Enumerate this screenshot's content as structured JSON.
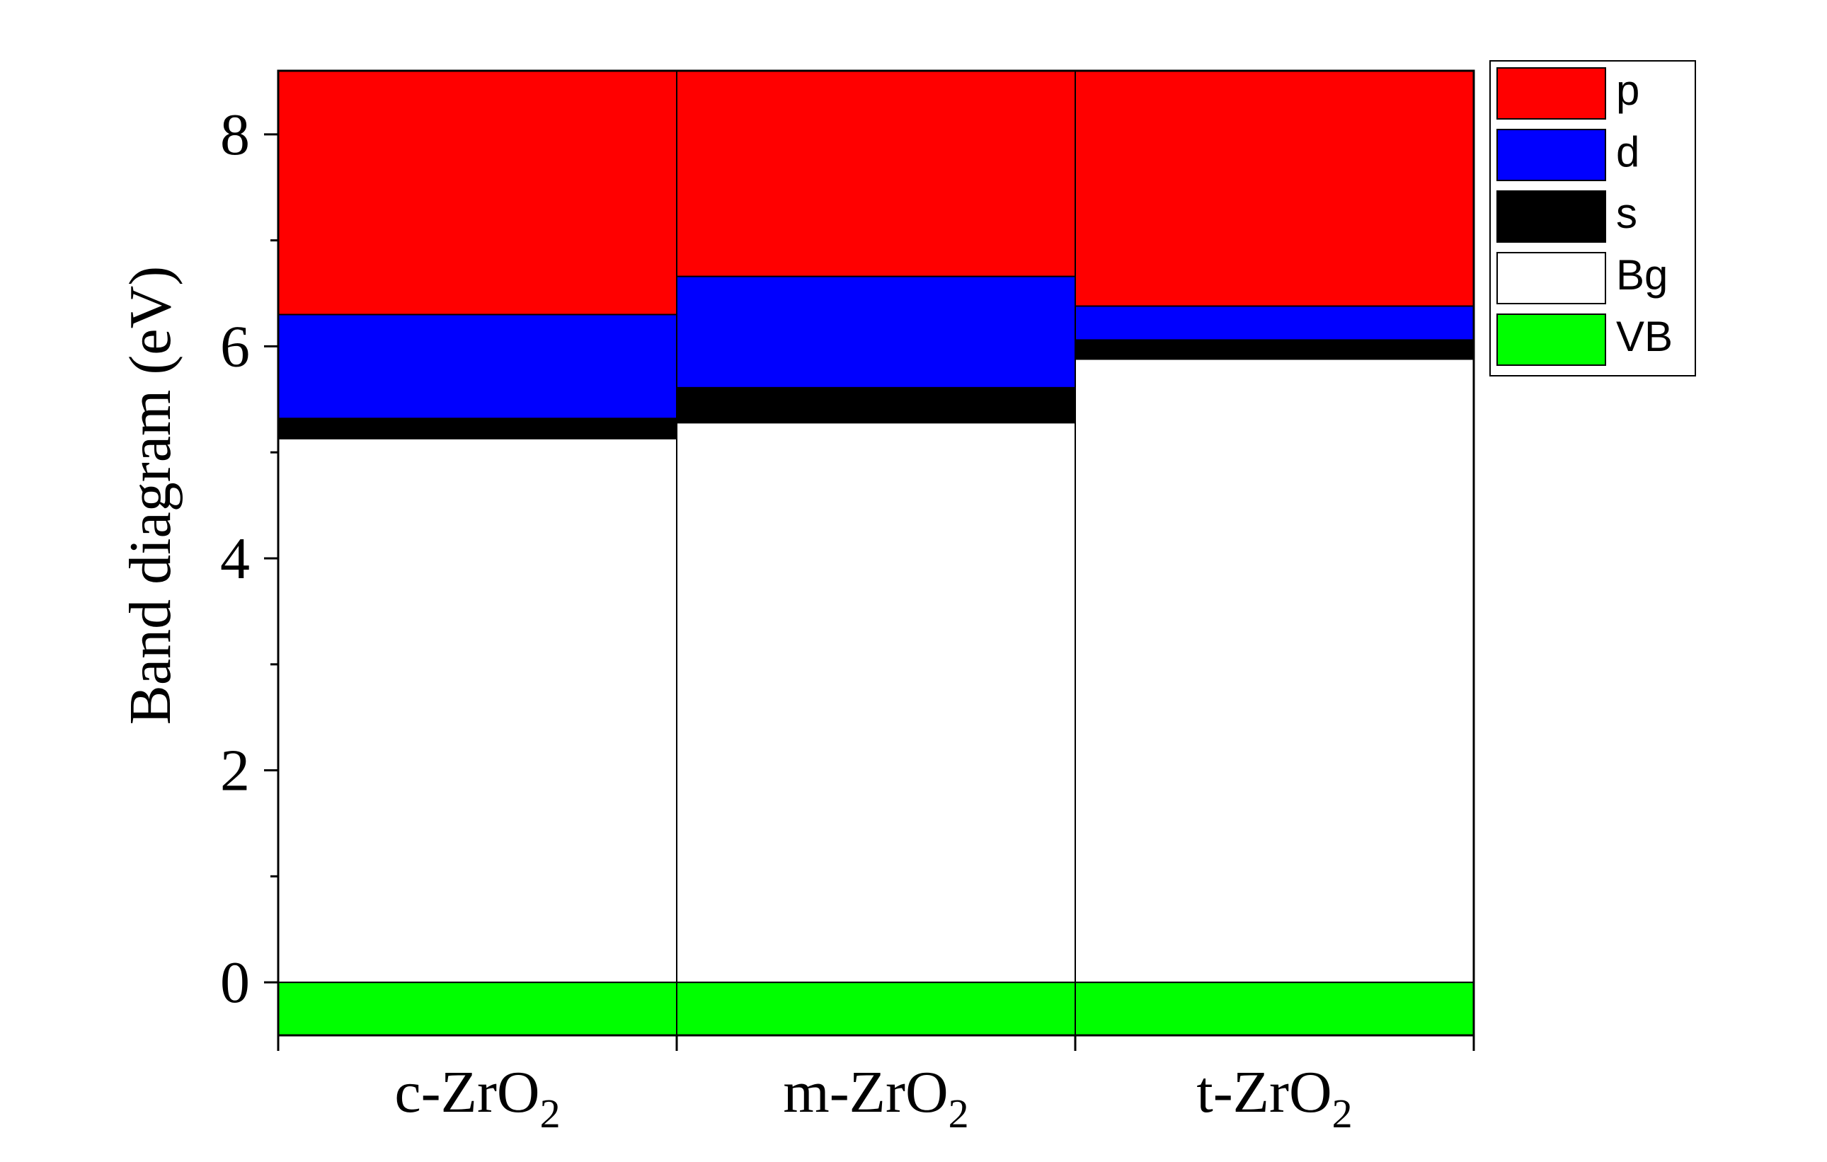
{
  "chart_data": {
    "type": "bar",
    "stacked": true,
    "categories": [
      {
        "base": "c-ZrO",
        "sub": "2"
      },
      {
        "base": "m-ZrO",
        "sub": "2"
      },
      {
        "base": "t-ZrO",
        "sub": "2"
      }
    ],
    "ylabel": "Band diagram (eV)",
    "xlabel": "",
    "ylim": [
      -0.5,
      8.6
    ],
    "yticks": [
      0,
      2,
      4,
      6,
      8
    ],
    "y_minor_step": 1,
    "grid": false,
    "legend_position": "top-right outside",
    "series": [
      {
        "name": "VB",
        "color": "#00ff00",
        "from": [
          -0.5,
          -0.5,
          -0.5
        ],
        "to": [
          0,
          0,
          0
        ]
      },
      {
        "name": "Bg",
        "color": "#ffffff",
        "from": [
          0,
          0,
          0
        ],
        "to": [
          5.13,
          5.28,
          5.88
        ]
      },
      {
        "name": "s",
        "color": "#000000",
        "from": [
          5.13,
          5.28,
          5.88
        ],
        "to": [
          5.32,
          5.61,
          6.06
        ]
      },
      {
        "name": "d",
        "color": "#0000ff",
        "from": [
          5.32,
          5.61,
          6.06
        ],
        "to": [
          6.3,
          6.66,
          6.38
        ]
      },
      {
        "name": "p",
        "color": "#ff0000",
        "from": [
          6.3,
          6.66,
          6.38
        ],
        "to": [
          8.6,
          8.6,
          8.6
        ]
      }
    ],
    "legend_order": [
      "p",
      "d",
      "s",
      "Bg",
      "VB"
    ]
  }
}
